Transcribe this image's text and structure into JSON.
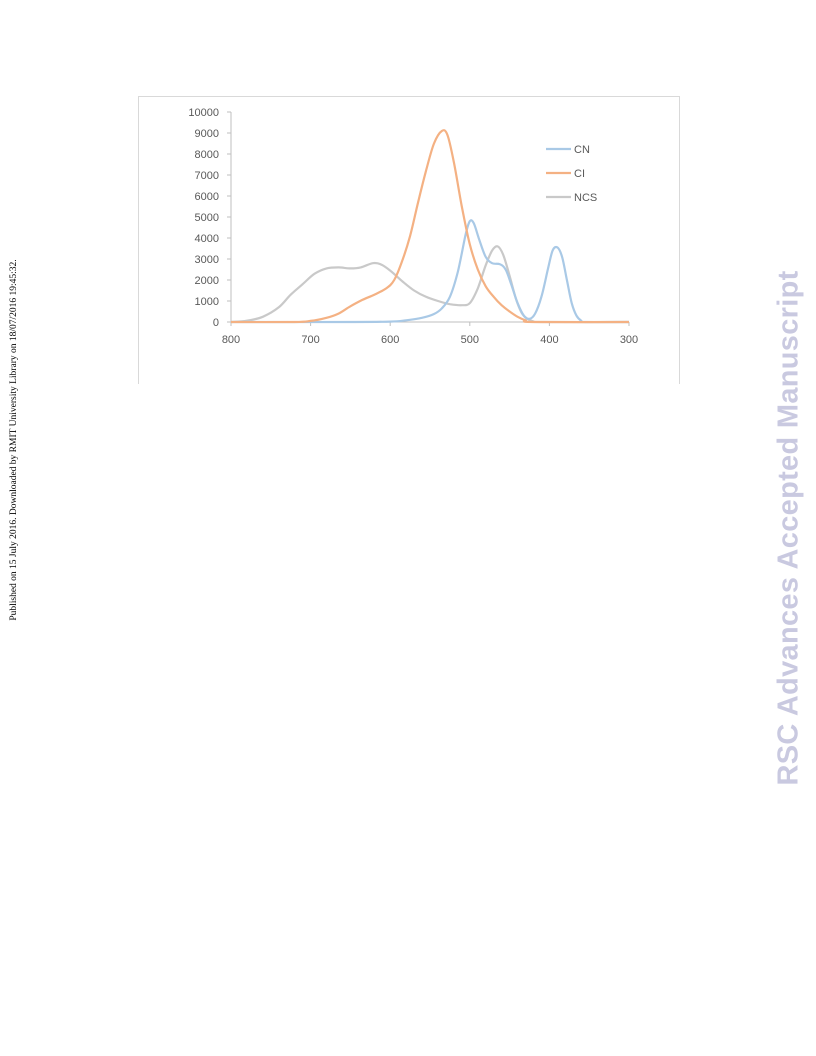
{
  "side_note": "Published on 15 July 2016. Downloaded by RMIT University Library on 18/07/2016 19:45:32.",
  "watermark": "RSC Advances Accepted Manuscript",
  "colors": {
    "CN": "#a9c9e6",
    "CI": "#f4b183",
    "NCS": "#c9c9c9",
    "axis": "#bfbfbf",
    "text": "#595959"
  },
  "chart_data": {
    "type": "line",
    "xlim": [
      800,
      300
    ],
    "ylim": [
      0,
      10000
    ],
    "x_ticks": [
      800,
      700,
      600,
      500,
      400,
      300
    ],
    "y_ticks": [
      0,
      1000,
      2000,
      3000,
      4000,
      5000,
      6000,
      7000,
      8000,
      9000,
      10000
    ],
    "legend_position": "top-right",
    "grid": false,
    "series": [
      {
        "name": "CN",
        "color": "#a9c9e6",
        "points": [
          [
            800,
            0
          ],
          [
            650,
            0
          ],
          [
            600,
            20
          ],
          [
            580,
            80
          ],
          [
            560,
            200
          ],
          [
            545,
            380
          ],
          [
            535,
            650
          ],
          [
            525,
            1200
          ],
          [
            515,
            2400
          ],
          [
            505,
            4200
          ],
          [
            500,
            4800
          ],
          [
            495,
            4700
          ],
          [
            488,
            3900
          ],
          [
            480,
            3100
          ],
          [
            472,
            2800
          ],
          [
            462,
            2750
          ],
          [
            455,
            2500
          ],
          [
            448,
            1800
          ],
          [
            440,
            900
          ],
          [
            432,
            300
          ],
          [
            425,
            150
          ],
          [
            418,
            400
          ],
          [
            410,
            1200
          ],
          [
            402,
            2500
          ],
          [
            396,
            3400
          ],
          [
            390,
            3550
          ],
          [
            384,
            3100
          ],
          [
            378,
            2000
          ],
          [
            372,
            900
          ],
          [
            366,
            300
          ],
          [
            360,
            60
          ],
          [
            355,
            0
          ],
          [
            300,
            0
          ]
        ]
      },
      {
        "name": "CI",
        "color": "#f4b183",
        "points": [
          [
            800,
            0
          ],
          [
            720,
            0
          ],
          [
            700,
            50
          ],
          [
            680,
            200
          ],
          [
            665,
            400
          ],
          [
            650,
            750
          ],
          [
            635,
            1050
          ],
          [
            620,
            1300
          ],
          [
            605,
            1600
          ],
          [
            595,
            2000
          ],
          [
            585,
            2900
          ],
          [
            575,
            4100
          ],
          [
            565,
            5700
          ],
          [
            555,
            7200
          ],
          [
            545,
            8500
          ],
          [
            535,
            9100
          ],
          [
            528,
            8900
          ],
          [
            520,
            7600
          ],
          [
            510,
            5500
          ],
          [
            500,
            3700
          ],
          [
            490,
            2500
          ],
          [
            480,
            1700
          ],
          [
            470,
            1200
          ],
          [
            460,
            800
          ],
          [
            450,
            500
          ],
          [
            440,
            250
          ],
          [
            430,
            80
          ],
          [
            420,
            0
          ],
          [
            300,
            0
          ]
        ]
      },
      {
        "name": "NCS",
        "color": "#c9c9c9",
        "points": [
          [
            800,
            0
          ],
          [
            780,
            60
          ],
          [
            760,
            250
          ],
          [
            740,
            700
          ],
          [
            725,
            1300
          ],
          [
            710,
            1800
          ],
          [
            695,
            2300
          ],
          [
            680,
            2550
          ],
          [
            665,
            2600
          ],
          [
            650,
            2550
          ],
          [
            637,
            2600
          ],
          [
            622,
            2800
          ],
          [
            612,
            2750
          ],
          [
            600,
            2450
          ],
          [
            585,
            1950
          ],
          [
            570,
            1500
          ],
          [
            555,
            1200
          ],
          [
            540,
            1000
          ],
          [
            525,
            850
          ],
          [
            510,
            800
          ],
          [
            500,
            900
          ],
          [
            490,
            1600
          ],
          [
            480,
            2700
          ],
          [
            472,
            3400
          ],
          [
            465,
            3600
          ],
          [
            458,
            3200
          ],
          [
            450,
            2200
          ],
          [
            442,
            1100
          ],
          [
            435,
            450
          ],
          [
            428,
            150
          ],
          [
            420,
            30
          ],
          [
            410,
            0
          ],
          [
            300,
            0
          ]
        ]
      }
    ]
  }
}
